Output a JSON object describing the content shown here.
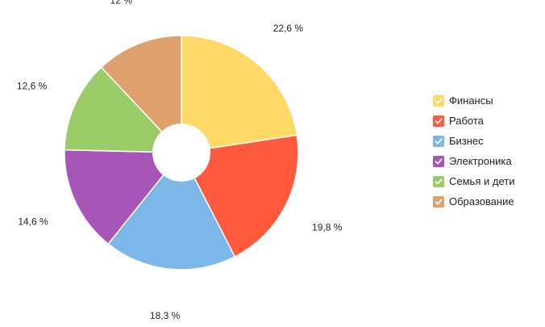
{
  "chart_data": {
    "type": "pie",
    "title": "",
    "donut": true,
    "legend_position": "right",
    "label_suffix": " %",
    "slices": [
      {
        "label": "Финансы",
        "value": 22.6,
        "value_text": "22,6",
        "color": "#FFD966"
      },
      {
        "label": "Работа",
        "value": 19.8,
        "value_text": "19,8",
        "color": "#FF5A3D"
      },
      {
        "label": "Бизнес",
        "value": 18.3,
        "value_text": "18,3",
        "color": "#7BB7E8"
      },
      {
        "label": "Электроника",
        "value": 14.6,
        "value_text": "14,6",
        "color": "#A855B8"
      },
      {
        "label": "Семья и дети",
        "value": 12.6,
        "value_text": "12,6",
        "color": "#99CC66"
      },
      {
        "label": "Образование",
        "value": 12.0,
        "value_text": "12",
        "color": "#DEA16E"
      }
    ]
  }
}
